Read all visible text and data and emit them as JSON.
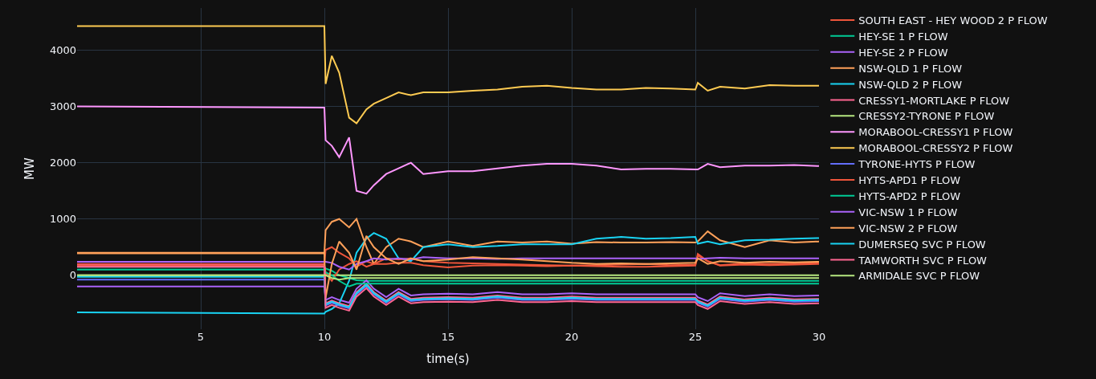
{
  "chart_data": {
    "type": "line",
    "xlabel": "time(s)",
    "ylabel": "MW",
    "x": [
      0,
      10,
      10.05,
      10.3,
      10.6,
      11,
      11.3,
      11.7,
      12,
      12.5,
      13,
      13.5,
      14,
      15,
      16,
      17,
      18,
      19,
      20,
      21,
      22,
      23,
      24,
      25,
      25.1,
      25.5,
      26,
      27,
      28,
      29,
      30
    ],
    "xlim": [
      0,
      30
    ],
    "xticks": [
      5,
      10,
      15,
      20,
      25,
      30
    ],
    "ylim": [
      -960,
      4750
    ],
    "yticks": [
      0,
      1000,
      2000,
      3000,
      4000
    ],
    "grid": true,
    "legend": "right",
    "marker": "none",
    "line_style": "solid",
    "series": [
      {
        "name": "SOUTH EAST - HEY WOOD 2 P FLOW",
        "color": "#ef553b",
        "values": [
          200,
          200,
          450,
          500,
          400,
          300,
          150,
          250,
          200,
          200,
          220,
          220,
          180,
          140,
          170,
          180,
          170,
          160,
          170,
          160,
          150,
          150,
          160,
          170,
          350,
          250,
          170,
          190,
          180,
          190,
          200
        ]
      },
      {
        "name": "HEY-SE 1 P FLOW",
        "color": "#00cc96",
        "values": [
          150,
          150,
          120,
          80,
          0,
          -50,
          -90,
          -100,
          -100,
          -100,
          -100,
          -100,
          -100,
          -100,
          -100,
          -100,
          -100,
          -100,
          -100,
          -100,
          -100,
          -100,
          -100,
          -100,
          -100,
          -100,
          -100,
          -100,
          -100,
          -100,
          -100
        ]
      },
      {
        "name": "HEY-SE 2 P FLOW",
        "color": "#ab63fa",
        "values": [
          -200,
          -200,
          -440,
          -390,
          -440,
          -490,
          -240,
          -90,
          -240,
          -390,
          -240,
          -360,
          -340,
          -330,
          -340,
          -300,
          -340,
          -340,
          -320,
          -340,
          -340,
          -340,
          -340,
          -340,
          -390,
          -460,
          -320,
          -370,
          -340,
          -370,
          -360
        ]
      },
      {
        "name": "NSW-QLD 1 P FLOW",
        "color": "#ffa15a",
        "values": [
          400,
          400,
          800,
          950,
          1000,
          850,
          1000,
          500,
          200,
          500,
          650,
          600,
          500,
          600,
          520,
          600,
          580,
          600,
          560,
          590,
          580,
          580,
          590,
          580,
          600,
          780,
          620,
          500,
          620,
          580,
          600
        ]
      },
      {
        "name": "NSW-QLD 2 P FLOW",
        "color": "#19d3f3",
        "values": [
          -660,
          -680,
          -650,
          -600,
          -500,
          -100,
          400,
          650,
          750,
          650,
          300,
          250,
          500,
          550,
          500,
          520,
          550,
          550,
          550,
          650,
          680,
          650,
          660,
          680,
          560,
          600,
          550,
          620,
          630,
          650,
          660
        ]
      },
      {
        "name": "CRESSY1-MORTLAKE P FLOW",
        "color": "#ff6692",
        "values": [
          180,
          180,
          -500,
          -450,
          -500,
          -550,
          -300,
          -150,
          -300,
          -450,
          -300,
          -420,
          -400,
          -390,
          -400,
          -360,
          -400,
          -400,
          -380,
          -400,
          -400,
          -400,
          -400,
          -400,
          -450,
          -520,
          -380,
          -430,
          -400,
          -430,
          -420
        ]
      },
      {
        "name": "CRESSY2-TYRONE P FLOW",
        "color": "#b6e880",
        "values": [
          0,
          0,
          0,
          0,
          0,
          0,
          0,
          0,
          0,
          0,
          0,
          0,
          0,
          0,
          0,
          0,
          0,
          0,
          0,
          0,
          0,
          0,
          0,
          0,
          0,
          0,
          0,
          0,
          0,
          0,
          0
        ]
      },
      {
        "name": "MORABOOL-CRESSY1 P FLOW",
        "color": "#ff97ff",
        "values": [
          3000,
          2980,
          2400,
          2300,
          2100,
          2450,
          1500,
          1450,
          1600,
          1800,
          1900,
          2000,
          1800,
          1850,
          1850,
          1900,
          1950,
          1980,
          1980,
          1950,
          1880,
          1890,
          1890,
          1880,
          1880,
          1980,
          1920,
          1950,
          1950,
          1960,
          1940
        ]
      },
      {
        "name": "MORABOOL-CRESSY2 P FLOW",
        "color": "#fecb52",
        "values": [
          4430,
          4430,
          3400,
          3900,
          3600,
          2800,
          2700,
          2950,
          3050,
          3150,
          3250,
          3200,
          3250,
          3250,
          3280,
          3300,
          3350,
          3370,
          3330,
          3300,
          3300,
          3330,
          3320,
          3300,
          3420,
          3280,
          3350,
          3320,
          3380,
          3370,
          3370
        ]
      },
      {
        "name": "TYRONE-HYTS P FLOW",
        "color": "#636efa",
        "values": [
          -80,
          -80,
          -540,
          -490,
          -540,
          -590,
          -340,
          -190,
          -340,
          -490,
          -340,
          -460,
          -440,
          -430,
          -440,
          -400,
          -440,
          -440,
          -420,
          -440,
          -440,
          -440,
          -440,
          -440,
          -490,
          -560,
          -420,
          -470,
          -440,
          -470,
          -460
        ]
      },
      {
        "name": "HYTS-APD1 P FLOW",
        "color": "#ef553b",
        "values": [
          170,
          170,
          50,
          -100,
          100,
          200,
          250,
          150,
          200,
          300,
          280,
          300,
          250,
          220,
          210,
          200,
          190,
          180,
          170,
          180,
          190,
          200,
          180,
          190,
          380,
          250,
          180,
          210,
          200,
          210,
          220
        ]
      },
      {
        "name": "HYTS-APD2 P FLOW",
        "color": "#00cc96",
        "values": [
          100,
          100,
          50,
          0,
          -100,
          -200,
          -150,
          -150,
          -150,
          -150,
          -150,
          -150,
          -150,
          -150,
          -150,
          -150,
          -150,
          -150,
          -150,
          -150,
          -150,
          -150,
          -150,
          -150,
          -150,
          -150,
          -150,
          -150,
          -150,
          -150,
          -150
        ]
      },
      {
        "name": "VIC-NSW 1 P FLOW",
        "color": "#ab63fa",
        "values": [
          240,
          240,
          240,
          220,
          150,
          100,
          200,
          250,
          300,
          280,
          300,
          280,
          320,
          300,
          300,
          290,
          300,
          300,
          300,
          300,
          300,
          300,
          300,
          300,
          290,
          300,
          310,
          300,
          300,
          300,
          300
        ]
      },
      {
        "name": "VIC-NSW 2 P FLOW",
        "color": "#ffa15a",
        "values": [
          390,
          390,
          -400,
          200,
          600,
          400,
          100,
          700,
          500,
          300,
          200,
          300,
          250,
          280,
          320,
          300,
          280,
          250,
          220,
          200,
          210,
          200,
          210,
          220,
          300,
          200,
          250,
          220,
          240,
          230,
          240
        ]
      },
      {
        "name": "DUMERSEQ SVC P FLOW",
        "color": "#19d3f3",
        "values": [
          -30,
          -30,
          -520,
          -470,
          -520,
          -570,
          -320,
          -170,
          -320,
          -470,
          -320,
          -440,
          -420,
          -410,
          -420,
          -380,
          -420,
          -420,
          -400,
          -420,
          -420,
          -420,
          -420,
          -420,
          -470,
          -540,
          -400,
          -450,
          -420,
          -450,
          -440
        ]
      },
      {
        "name": "TAMWORTH SVC P FLOW",
        "color": "#ff6692",
        "values": [
          150,
          150,
          -580,
          -530,
          -580,
          -630,
          -380,
          -230,
          -380,
          -530,
          -380,
          -500,
          -480,
          -470,
          -480,
          -440,
          -480,
          -480,
          -460,
          -480,
          -480,
          -480,
          -480,
          -480,
          -530,
          -600,
          -460,
          -510,
          -480,
          -510,
          -500
        ]
      },
      {
        "name": "ARMIDALE SVC P FLOW",
        "color": "#b6e880",
        "values": [
          0,
          0,
          0,
          -50,
          -80,
          -50,
          -50,
          -50,
          -50,
          -50,
          -50,
          -50,
          -50,
          -50,
          -50,
          -50,
          -50,
          -50,
          -50,
          -50,
          -50,
          -50,
          -50,
          -50,
          -50,
          -50,
          -50,
          -50,
          -50,
          -50,
          -50
        ]
      }
    ]
  }
}
